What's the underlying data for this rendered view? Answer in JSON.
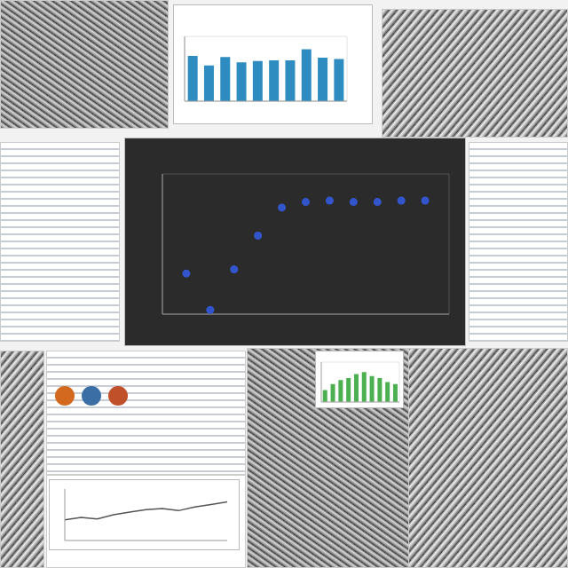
{
  "chart_data": [
    {
      "type": "scatter",
      "x": [
        1,
        2,
        3,
        4,
        5,
        6,
        7,
        8,
        9,
        10,
        11
      ],
      "values": [
        29,
        3,
        32,
        56,
        76,
        80,
        81,
        80,
        80,
        81,
        81
      ],
      "xlim": [
        0,
        12
      ],
      "xticks": [
        0,
        2,
        4,
        6,
        8,
        10,
        12
      ],
      "ylim": [
        0,
        100
      ],
      "yticks": [
        0,
        25,
        50,
        75,
        100
      ],
      "color": "#3355cc",
      "marker": "circle",
      "grid": true,
      "tick_labels": false
    },
    {
      "type": "bar",
      "categories": [
        null,
        null,
        null,
        null,
        null,
        null,
        null,
        null,
        null,
        null
      ],
      "values": [
        70,
        55,
        68,
        60,
        62,
        63,
        63,
        80,
        67,
        65
      ],
      "color": "#2e8cc0",
      "ylim": [
        0,
        100
      ],
      "yticks": [
        0,
        20,
        40,
        60,
        80,
        100
      ],
      "grid": true,
      "tick_labels": false
    },
    {
      "type": "bar",
      "categories": [
        null,
        null,
        null,
        null,
        null,
        null,
        null,
        null,
        null,
        null
      ],
      "values": [
        30,
        45,
        55,
        60,
        70,
        75,
        65,
        60,
        50,
        45
      ],
      "color": "#4caf50",
      "ylim": [
        0,
        100
      ],
      "yticks": [
        0,
        50,
        100
      ],
      "grid": true,
      "tick_labels": false
    },
    {
      "type": "line",
      "x": [
        1,
        2,
        3,
        4,
        5,
        6,
        7,
        8,
        9,
        10,
        11
      ],
      "values": [
        40,
        45,
        42,
        50,
        55,
        60,
        62,
        58,
        65,
        70,
        75
      ],
      "xlim": [
        1,
        11
      ],
      "xticks": [
        1,
        3,
        5,
        7,
        9,
        11
      ],
      "ylim": [
        0,
        100
      ],
      "yticks": [
        0,
        50,
        100
      ],
      "color": "#555555",
      "grid": false,
      "tick_labels": false
    }
  ]
}
